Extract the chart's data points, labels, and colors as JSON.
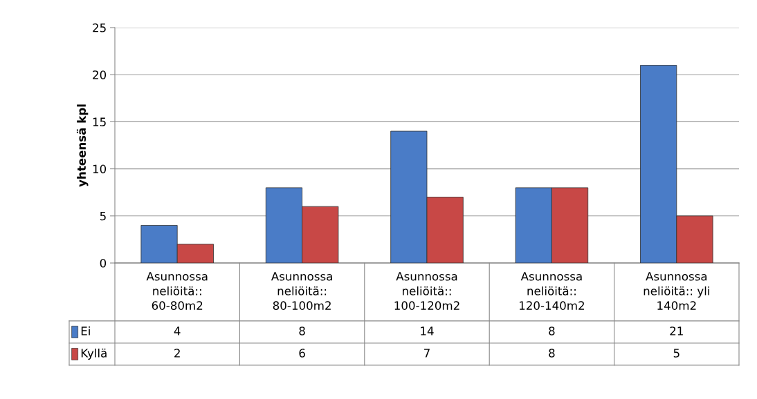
{
  "chart_data": {
    "type": "bar",
    "ylabel": "yhteensä kpl",
    "categories": [
      "Asunnossa neliöitä:: 60-80m2",
      "Asunnossa neliöitä:: 80-100m2",
      "Asunnossa neliöitä:: 100-120m2",
      "Asunnossa neliöitä:: 120-140m2",
      "Asunnossa neliöitä:: yli 140m2"
    ],
    "series": [
      {
        "name": "Ei",
        "color": "#4a7cc7",
        "values": [
          4,
          8,
          14,
          8,
          21
        ]
      },
      {
        "name": "Kyllä",
        "color": "#c84846",
        "values": [
          2,
          6,
          7,
          8,
          5
        ]
      }
    ],
    "ylim": [
      0,
      25
    ],
    "yticks": [
      0,
      5,
      10,
      15,
      20,
      25
    ],
    "grid": "y",
    "data_labels": true,
    "legend": "bottom left"
  }
}
